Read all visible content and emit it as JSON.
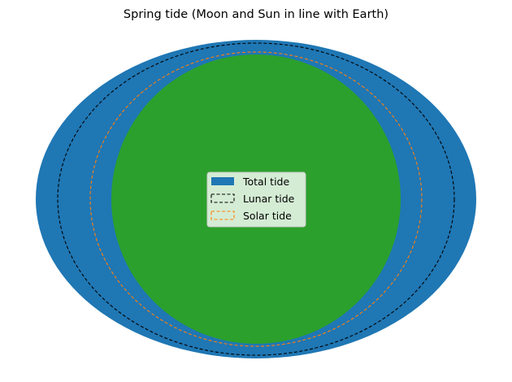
{
  "title": "Spring tide (Moon and Sun in line with Earth)",
  "colors": {
    "total_tide": "#1f77b4",
    "lunar_tide": "#000000",
    "solar_tide": "#ff7f0e",
    "earth": "#2ca02c",
    "legend_background": "#ffffff"
  },
  "legend": {
    "placement": "center",
    "entries": [
      {
        "key": "total",
        "label": "Total tide",
        "style": "filled"
      },
      {
        "key": "lunar",
        "label": "Lunar tide",
        "style": "dashed"
      },
      {
        "key": "solar",
        "label": "Solar tide",
        "style": "dashed"
      }
    ]
  }
}
